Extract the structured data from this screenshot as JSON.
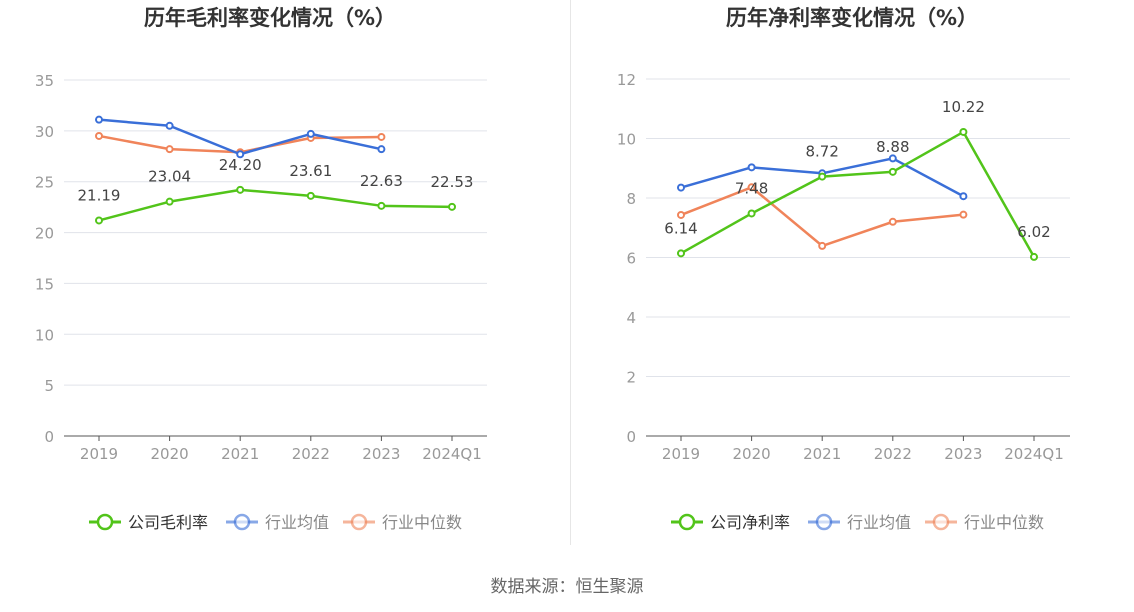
{
  "footer": {
    "source": "数据来源：恒生聚源"
  },
  "colors": {
    "company": "#52c41a",
    "industry_avg": "#3a6fd8",
    "industry_median": "#f0845a",
    "grid": "#e0e3ea",
    "axis_text": "#999999"
  },
  "chart_data": [
    {
      "type": "line",
      "title": "历年毛利率变化情况（%）",
      "categories": [
        "2019",
        "2020",
        "2021",
        "2022",
        "2023",
        "2024Q1"
      ],
      "ylim": [
        0,
        35
      ],
      "yticks": [
        0,
        5,
        10,
        15,
        20,
        25,
        30,
        35
      ],
      "grid": true,
      "legend_position": "bottom",
      "series": [
        {
          "name": "公司毛利率",
          "key": "company",
          "values": [
            21.19,
            23.04,
            24.2,
            23.61,
            22.63,
            22.53
          ],
          "labels": [
            "21.19",
            "23.04",
            "24.20",
            "23.61",
            "22.63",
            "22.53"
          ]
        },
        {
          "name": "行业均值",
          "key": "industry_avg",
          "values": [
            31.1,
            30.5,
            27.7,
            29.7,
            28.2,
            null
          ]
        },
        {
          "name": "行业中位数",
          "key": "industry_median",
          "values": [
            29.5,
            28.2,
            27.9,
            29.3,
            29.4,
            null
          ]
        }
      ]
    },
    {
      "type": "line",
      "title": "历年净利率变化情况（%）",
      "categories": [
        "2019",
        "2020",
        "2021",
        "2022",
        "2023",
        "2024Q1"
      ],
      "ylim": [
        0,
        12
      ],
      "yticks": [
        0,
        2,
        4,
        6,
        8,
        10,
        12
      ],
      "grid": true,
      "legend_position": "bottom",
      "series": [
        {
          "name": "公司净利率",
          "key": "company",
          "values": [
            6.14,
            7.48,
            8.72,
            8.88,
            10.22,
            6.02
          ],
          "labels": [
            "6.14",
            "7.48",
            "8.72",
            "8.88",
            "10.22",
            "6.02"
          ]
        },
        {
          "name": "行业均值",
          "key": "industry_avg",
          "values": [
            8.35,
            9.03,
            8.83,
            9.33,
            8.06,
            null
          ]
        },
        {
          "name": "行业中位数",
          "key": "industry_median",
          "values": [
            7.43,
            8.36,
            6.39,
            7.2,
            7.44,
            null
          ]
        }
      ]
    }
  ]
}
